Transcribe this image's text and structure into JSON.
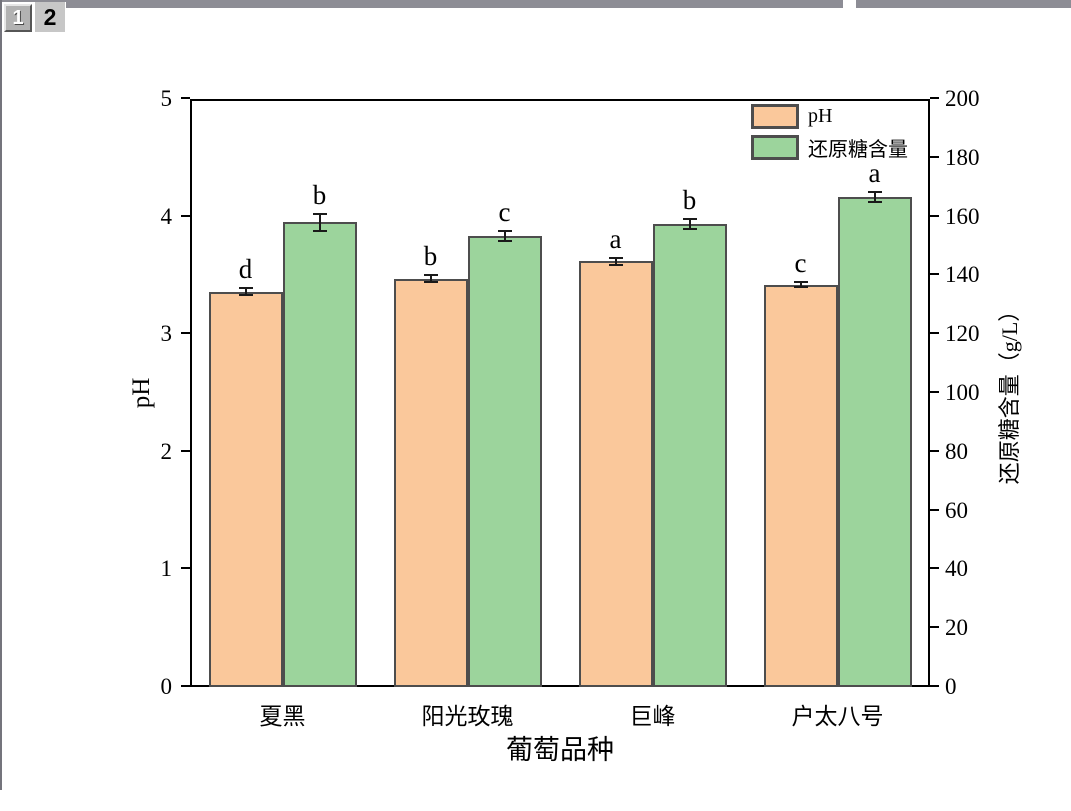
{
  "window": {
    "page_tabs": [
      {
        "label": "1",
        "active": false
      },
      {
        "label": "2",
        "active": true
      }
    ]
  },
  "chart_data": {
    "type": "bar",
    "title": "",
    "categories": [
      "夏黑",
      "阳光玫瑰",
      "巨峰",
      "户太八号"
    ],
    "xlabel": "葡萄品种",
    "grid": false,
    "legend": {
      "position": "top-right",
      "frame": false,
      "entries": [
        "pH",
        "还原糖含量"
      ]
    },
    "axes": {
      "left": {
        "label": "pH",
        "min": 0,
        "max": 5,
        "ticks": [
          0,
          1,
          2,
          3,
          4,
          5
        ]
      },
      "right": {
        "label": "还原糖含量（g/L）",
        "min": 0,
        "max": 200,
        "ticks": [
          0,
          20,
          40,
          60,
          80,
          100,
          120,
          140,
          160,
          180,
          200
        ]
      }
    },
    "series": [
      {
        "name": "pH",
        "axis": "left",
        "color": "#FAC89B",
        "values": [
          3.36,
          3.47,
          3.62,
          3.42
        ],
        "errors": [
          0.03,
          0.03,
          0.03,
          0.02
        ],
        "sig_letters": [
          "d",
          "b",
          "a",
          "c"
        ]
      },
      {
        "name": "还原糖含量",
        "axis": "right",
        "color": "#9CD49C",
        "values": [
          158,
          153.5,
          157.5,
          166.5
        ],
        "errors": [
          3,
          1.7,
          1.7,
          1.7
        ],
        "sig_letters": [
          "b",
          "c",
          "b",
          "a"
        ]
      }
    ],
    "bar_border_color": "#4D4D4D"
  }
}
